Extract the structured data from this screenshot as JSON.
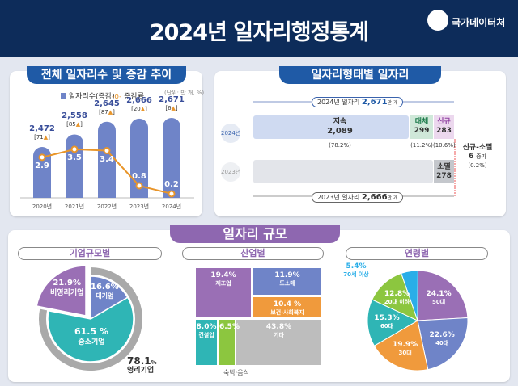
{
  "header": {
    "title": "2024년 일자리행정통계",
    "org": "국가데이터처"
  },
  "trend": {
    "title": "전체 일자리수 및 증감 추이",
    "legend_bar": "일자리수(증감)",
    "legend_line": "증감률",
    "unit": "(단위: 만 개, %)",
    "chart_data": {
      "type": "bar+line",
      "categories": [
        "2020년",
        "2021년",
        "2022년",
        "2023년",
        "2024년"
      ],
      "series": [
        {
          "name": "일자리수(증감)",
          "values": [
            2472,
            2558,
            2645,
            2666,
            2671
          ],
          "labels": [
            "2,472",
            "2,558",
            "2,645",
            "2,666",
            "2,671"
          ],
          "changes": [
            "71",
            "85",
            "87",
            "20",
            "6"
          ]
        },
        {
          "name": "증감률",
          "values": [
            2.9,
            3.5,
            3.4,
            0.8,
            0.2
          ],
          "labels": [
            "2.9",
            "3.5",
            "3.4",
            "0.8",
            "0.2"
          ]
        }
      ],
      "colors": {
        "bar": "#6f84c8",
        "line": "#e8952a"
      }
    }
  },
  "types": {
    "title": "일자리형태별 일자리",
    "y2024": "2024년",
    "y2023": "2023년",
    "total2024_label": "2024년 일자리",
    "total2024": "2,671",
    "total2023_label": "2023년 일자리",
    "total2023": "2,666",
    "unit": "만 개",
    "continue": {
      "label": "지속",
      "value": "2,089",
      "pct": "(78.2%)"
    },
    "replace": {
      "label": "대체",
      "value": "299",
      "pct": "(11.2%)"
    },
    "new": {
      "label": "신규",
      "value": "283",
      "pct": "(10.6%)"
    },
    "lost": {
      "label": "소멸",
      "value": "278"
    },
    "net": {
      "label": "신규-소멸",
      "value": "6",
      "suffix": "증가",
      "pct": "(0.2%)"
    }
  },
  "scale": {
    "title": "일자리 규모",
    "company": {
      "title": "기업규모별",
      "chart_data": {
        "type": "pie",
        "slices": [
          {
            "label": "대기업",
            "value": 16.6,
            "color": "#6f84c8"
          },
          {
            "label": "중소기업",
            "value": 61.5,
            "color": "#2fb5b5"
          },
          {
            "label": "비영리기업",
            "value": 21.9,
            "color": "#9a6fb5"
          }
        ]
      },
      "profit": {
        "value": "78.1",
        "unit": "%",
        "label": "영리기업"
      },
      "labels": {
        "large": "16.6%",
        "sme": "61.5 %",
        "nonprofit": "21.9%"
      }
    },
    "industry": {
      "title": "산업별",
      "caption": "숙박·음식",
      "cells": [
        {
          "label": "제조업",
          "value": "19.4%",
          "color": "#9a6fb5"
        },
        {
          "label": "도소매",
          "value": "11.9%",
          "color": "#6f84c8"
        },
        {
          "label": "보건·사회복지",
          "value": "10.4 %",
          "color": "#f09a3c"
        },
        {
          "label": "건설업",
          "value": "8.0%",
          "color": "#2fb5b5"
        },
        {
          "label": "숙박·음식",
          "value": "6.5%",
          "color": "#8cc63f"
        },
        {
          "label": "기타",
          "value": "43.8%",
          "color": "#bdbdbd"
        }
      ]
    },
    "age": {
      "title": "연령별",
      "chart_data": {
        "type": "pie",
        "slices": [
          {
            "label": "50대",
            "value": 24.1,
            "color": "#9a6fb5"
          },
          {
            "label": "40대",
            "value": 22.6,
            "color": "#6f84c8"
          },
          {
            "label": "30대",
            "value": 19.9,
            "color": "#f09a3c"
          },
          {
            "label": "60대",
            "value": 15.3,
            "color": "#2fb5b5"
          },
          {
            "label": "20대 이하",
            "value": 12.8,
            "color": "#8cc63f"
          },
          {
            "label": "70세 이상",
            "value": 5.4,
            "color": "#29aee8"
          }
        ]
      },
      "labels": [
        "24.1%",
        "22.6%",
        "19.9%",
        "15.3%",
        "12.8%",
        "5.4%"
      ]
    }
  }
}
